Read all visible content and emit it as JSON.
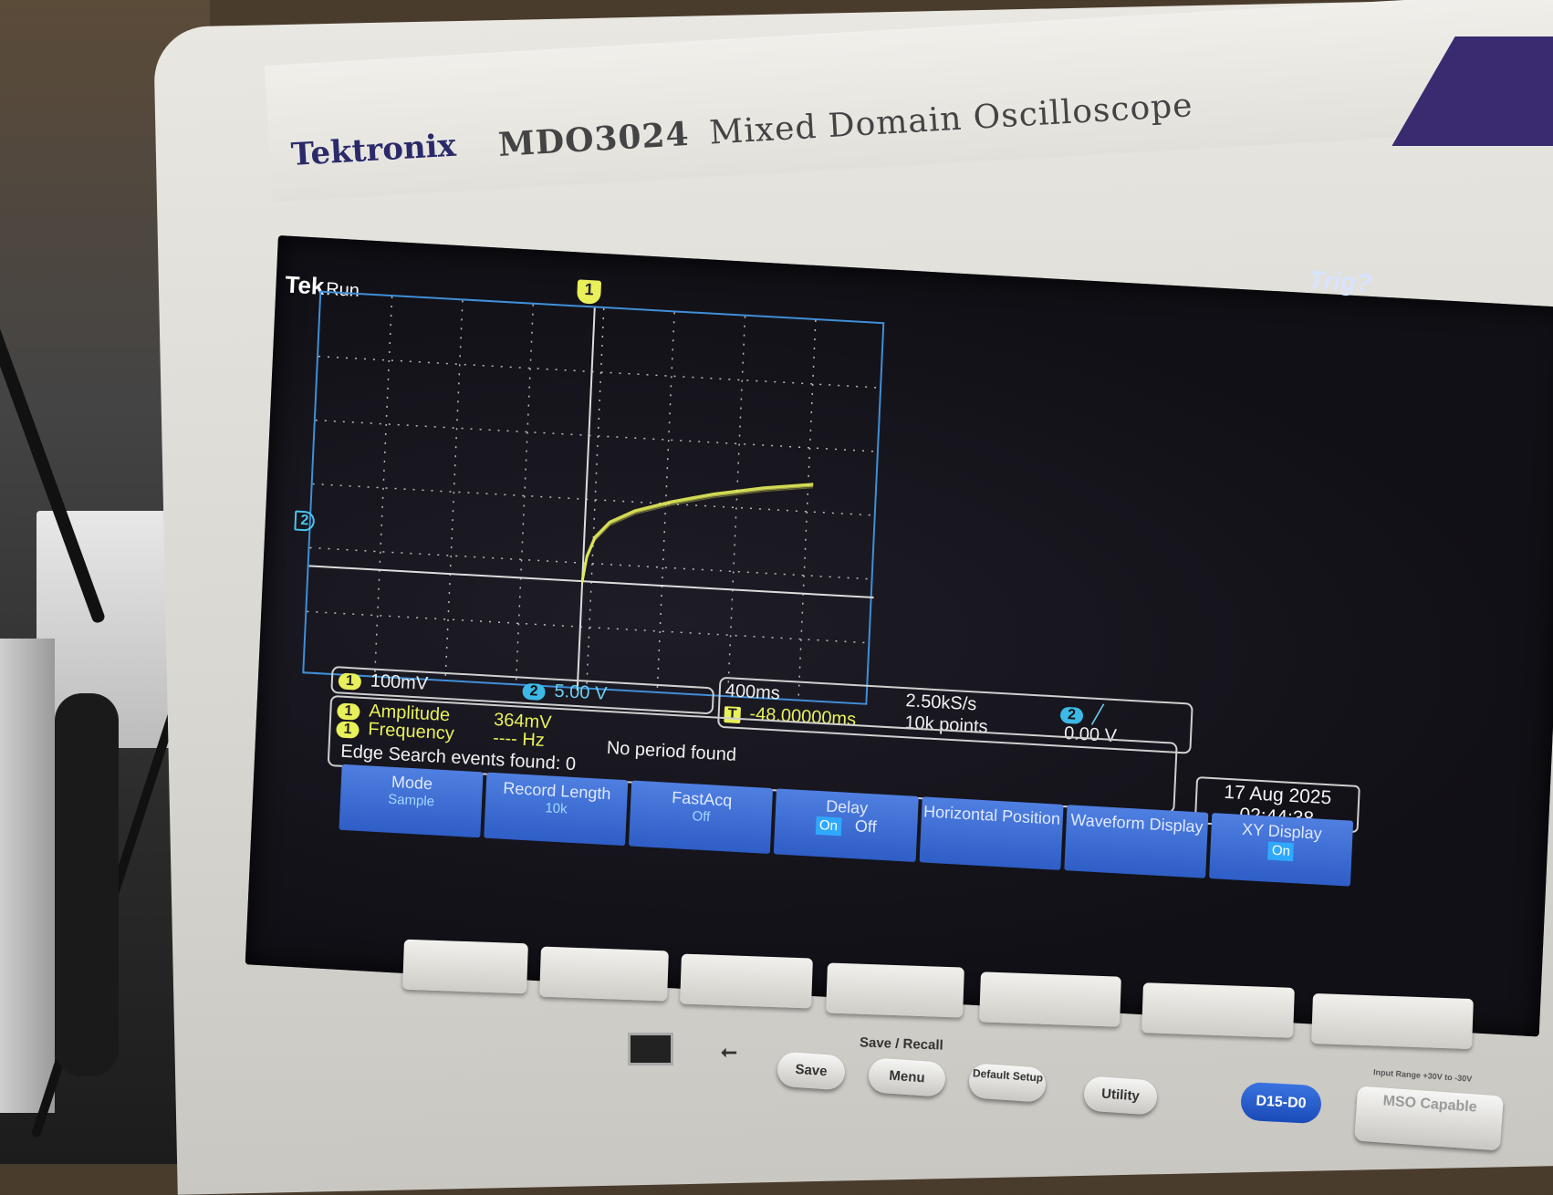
{
  "device": {
    "brand": "Tektronix",
    "model": "MDO3024",
    "description": "Mixed Domain Oscilloscope"
  },
  "screen": {
    "logo": "Tek",
    "run_state": "Run",
    "trigger_status": "Trig?",
    "channel1_marker": "1",
    "channel2_marker": "2"
  },
  "readout": {
    "ch1_label": "1",
    "ch1_scale": "100mV",
    "ch2_label": "2",
    "ch2_scale": "5.00 V",
    "timebase": "400ms",
    "trigger_offset": "-48.00000ms",
    "sample_rate": "2.50kS/s",
    "record_points": "10k points",
    "trigger_source": "2",
    "trigger_level": "0.00 V",
    "meas1_label": "Amplitude",
    "meas1_value": "364mV",
    "meas2_label": "Frequency",
    "meas2_value": "---- Hz",
    "meas2_note": "No period found",
    "search_text": "Edge Search events found: 0"
  },
  "datetime": {
    "date": "17 Aug 2025",
    "time": "02:44:38"
  },
  "menu": [
    {
      "label": "Mode",
      "value": "Sample"
    },
    {
      "label": "Record Length",
      "value": "10k"
    },
    {
      "label": "FastAcq",
      "value": "Off"
    },
    {
      "label": "Delay",
      "value_on": "On",
      "value_off": "Off"
    },
    {
      "label": "Horizontal Position",
      "value": ""
    },
    {
      "label": "Waveform Display",
      "value": ""
    },
    {
      "label": "XY Display",
      "value": "On"
    }
  ],
  "panel": {
    "save_recall_label": "Save / Recall",
    "save": "Save",
    "menu": "Menu",
    "default_setup": "Default Setup",
    "utility": "Utility",
    "digital": "D15-D0",
    "mso": "MSO Capable",
    "input_range": "Input Range +30V to -30V"
  },
  "colors": {
    "ch1": "#e8f05a",
    "ch2": "#3cb9e6",
    "graticule": "#3f8fd8",
    "menu_bg": "#2e5ec6"
  },
  "xy_trace": {
    "description_units": "x in CH2 divisions, y in CH1 divisions",
    "points": [
      [
        0.0,
        0.0
      ],
      [
        0.05,
        0.4
      ],
      [
        0.15,
        0.7
      ],
      [
        0.35,
        0.95
      ],
      [
        0.7,
        1.15
      ],
      [
        1.2,
        1.32
      ],
      [
        1.8,
        1.48
      ],
      [
        2.5,
        1.62
      ],
      [
        3.2,
        1.72
      ]
    ]
  }
}
